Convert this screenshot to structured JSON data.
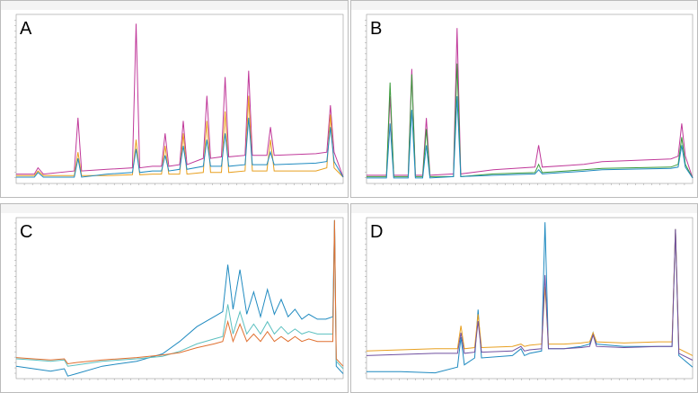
{
  "chart_data": [
    {
      "type": "line",
      "label": "A",
      "xlim": [
        0,
        18
      ],
      "ylim": [
        -0.2,
        5.2
      ],
      "x": [
        0,
        1.0,
        1.2,
        1.5,
        3.2,
        3.4,
        3.6,
        5.0,
        6.4,
        6.6,
        6.8,
        7.5,
        8.0,
        8.2,
        8.4,
        9.0,
        9.2,
        9.4,
        10.3,
        10.5,
        10.7,
        11.3,
        11.5,
        11.7,
        12.6,
        12.8,
        13.0,
        13.8,
        14.0,
        14.2,
        16.5,
        17.1,
        17.3,
        17.5,
        18.0
      ],
      "series": [
        {
          "color": "#c0399a",
          "values": [
            0.1,
            0.1,
            0.3,
            0.1,
            0.2,
            1.9,
            0.2,
            0.25,
            0.3,
            4.9,
            0.3,
            0.35,
            0.35,
            1.4,
            0.35,
            0.4,
            1.8,
            0.4,
            0.6,
            2.6,
            0.6,
            0.65,
            3.2,
            0.65,
            0.7,
            3.4,
            0.7,
            0.7,
            1.6,
            0.7,
            0.75,
            0.8,
            2.3,
            0.8,
            0
          ]
        },
        {
          "color": "#e8a020",
          "values": [
            0.05,
            0.05,
            0.2,
            0.05,
            0.05,
            0.8,
            0.05,
            0.05,
            0.08,
            1.2,
            0.08,
            0.1,
            0.1,
            1.0,
            0.1,
            0.1,
            1.4,
            0.1,
            0.15,
            1.8,
            0.15,
            0.15,
            2.1,
            0.15,
            0.2,
            2.6,
            0.2,
            0.2,
            1.2,
            0.2,
            0.2,
            0.3,
            2.0,
            0.3,
            0
          ]
        },
        {
          "color": "#1f8ac0",
          "values": [
            0,
            0,
            0.15,
            0,
            0,
            0.6,
            0,
            0.1,
            0.15,
            0.9,
            0.15,
            0.2,
            0.2,
            0.7,
            0.2,
            0.25,
            1.0,
            0.25,
            0.35,
            1.2,
            0.35,
            0.35,
            1.4,
            0.35,
            0.4,
            1.9,
            0.4,
            0.4,
            0.8,
            0.4,
            0.45,
            0.5,
            1.6,
            0.5,
            0
          ]
        }
      ]
    },
    {
      "type": "line",
      "label": "B",
      "xlim": [
        0,
        18
      ],
      "ylim": [
        -0.2,
        6
      ],
      "x": [
        0,
        1.1,
        1.3,
        1.5,
        2.3,
        2.5,
        2.7,
        3.1,
        3.3,
        3.5,
        4.8,
        5.0,
        5.2,
        7.0,
        9.3,
        9.5,
        9.7,
        12.0,
        13.0,
        16.8,
        17.2,
        17.4,
        17.6,
        18.0
      ],
      "series": [
        {
          "color": "#c0399a",
          "values": [
            0.1,
            0.1,
            3.0,
            0.1,
            0.1,
            4.0,
            0.1,
            0.1,
            2.2,
            0.1,
            0.15,
            5.5,
            0.15,
            0.3,
            0.4,
            1.2,
            0.4,
            0.5,
            0.6,
            0.7,
            0.8,
            2.0,
            0.8,
            0
          ]
        },
        {
          "color": "#3a9a3a",
          "values": [
            0.05,
            0.05,
            3.5,
            0.05,
            0.05,
            3.8,
            0.05,
            0.05,
            1.8,
            0.05,
            0.05,
            4.2,
            0.05,
            0.15,
            0.2,
            0.5,
            0.2,
            0.3,
            0.35,
            0.4,
            0.5,
            1.5,
            0.5,
            0
          ]
        },
        {
          "color": "#1f8ac0",
          "values": [
            0,
            0,
            2.0,
            0,
            0,
            2.5,
            0,
            0,
            1.2,
            0,
            0.05,
            3.0,
            0.05,
            0.1,
            0.15,
            0.3,
            0.15,
            0.25,
            0.3,
            0.35,
            0.4,
            1.2,
            0.4,
            0
          ]
        }
      ]
    },
    {
      "type": "line",
      "label": "C",
      "xlim": [
        0,
        19
      ],
      "ylim": [
        -1,
        5.5
      ],
      "x": [
        0,
        1,
        2,
        2.8,
        3.0,
        3.5,
        5,
        7,
        8.5,
        9.5,
        10.5,
        11.5,
        12.0,
        12.3,
        12.6,
        13.0,
        13.4,
        13.8,
        14.2,
        14.6,
        15.0,
        15.4,
        15.8,
        16.2,
        16.6,
        17,
        17.5,
        18.0,
        18.4,
        18.5,
        18.6,
        19.0
      ],
      "series": [
        {
          "color": "#1f8ac0",
          "values": [
            -0.5,
            -0.6,
            -0.7,
            -0.6,
            -0.9,
            -0.8,
            -0.5,
            -0.3,
            0,
            0.5,
            1.1,
            1.5,
            1.7,
            3.6,
            1.8,
            3.4,
            1.6,
            2.5,
            1.5,
            2.6,
            1.6,
            2.2,
            1.5,
            1.8,
            1.4,
            1.6,
            1.4,
            1.4,
            1.5,
            5.4,
            -0.5,
            -0.8
          ]
        },
        {
          "color": "#5cc0c0",
          "values": [
            -0.2,
            -0.25,
            -0.3,
            -0.25,
            -0.5,
            -0.45,
            -0.3,
            -0.2,
            -0.1,
            0.1,
            0.4,
            0.6,
            0.7,
            2.0,
            0.8,
            1.7,
            0.8,
            1.2,
            0.8,
            1.3,
            0.8,
            1.1,
            0.8,
            1.0,
            0.8,
            0.9,
            0.8,
            0.8,
            0.8,
            5.4,
            -0.3,
            -0.6
          ]
        },
        {
          "color": "#e07030",
          "values": [
            -0.15,
            -0.2,
            -0.25,
            -0.2,
            -0.4,
            -0.35,
            -0.25,
            -0.15,
            -0.05,
            0.05,
            0.25,
            0.4,
            0.5,
            1.3,
            0.5,
            1.2,
            0.5,
            0.8,
            0.5,
            0.9,
            0.5,
            0.7,
            0.5,
            0.7,
            0.5,
            0.6,
            0.5,
            0.5,
            0.5,
            5.4,
            -0.2,
            -0.5
          ]
        }
      ]
    },
    {
      "type": "line",
      "label": "D",
      "xlim": [
        0,
        19
      ],
      "ylim": [
        -1,
        6
      ],
      "x": [
        0,
        2,
        4,
        5.3,
        5.5,
        5.7,
        6.3,
        6.5,
        6.7,
        8.5,
        9.0,
        9.2,
        9.5,
        10.2,
        10.4,
        10.6,
        11.5,
        12.5,
        13.0,
        13.2,
        13.4,
        15,
        17,
        17.8,
        18.0,
        18.2,
        19
      ],
      "series": [
        {
          "color": "#1f8ac0",
          "values": [
            -0.7,
            -0.7,
            -0.75,
            -0.5,
            0.8,
            -0.4,
            -0.1,
            2.0,
            -0.1,
            0,
            0.3,
            0,
            0.1,
            0.2,
            5.8,
            0.3,
            0.3,
            0.4,
            0.5,
            1.0,
            0.5,
            0.4,
            0.4,
            0.4,
            5.5,
            0,
            -0.5
          ]
        },
        {
          "color": "#e8a020",
          "values": [
            0.2,
            0.25,
            0.3,
            0.3,
            1.3,
            0.3,
            0.35,
            1.8,
            0.35,
            0.4,
            0.5,
            0.4,
            0.45,
            0.5,
            3.0,
            0.5,
            0.5,
            0.55,
            0.6,
            1.0,
            0.6,
            0.55,
            0.6,
            0.6,
            5.5,
            0.3,
            0
          ]
        },
        {
          "color": "#7050a0",
          "values": [
            0,
            0.05,
            0.1,
            0.1,
            1.0,
            0.1,
            0.15,
            1.5,
            0.15,
            0.2,
            0.4,
            0.2,
            0.25,
            0.3,
            3.5,
            0.3,
            0.3,
            0.35,
            0.4,
            0.9,
            0.4,
            0.35,
            0.4,
            0.4,
            5.5,
            0.1,
            -0.2
          ]
        }
      ]
    }
  ]
}
